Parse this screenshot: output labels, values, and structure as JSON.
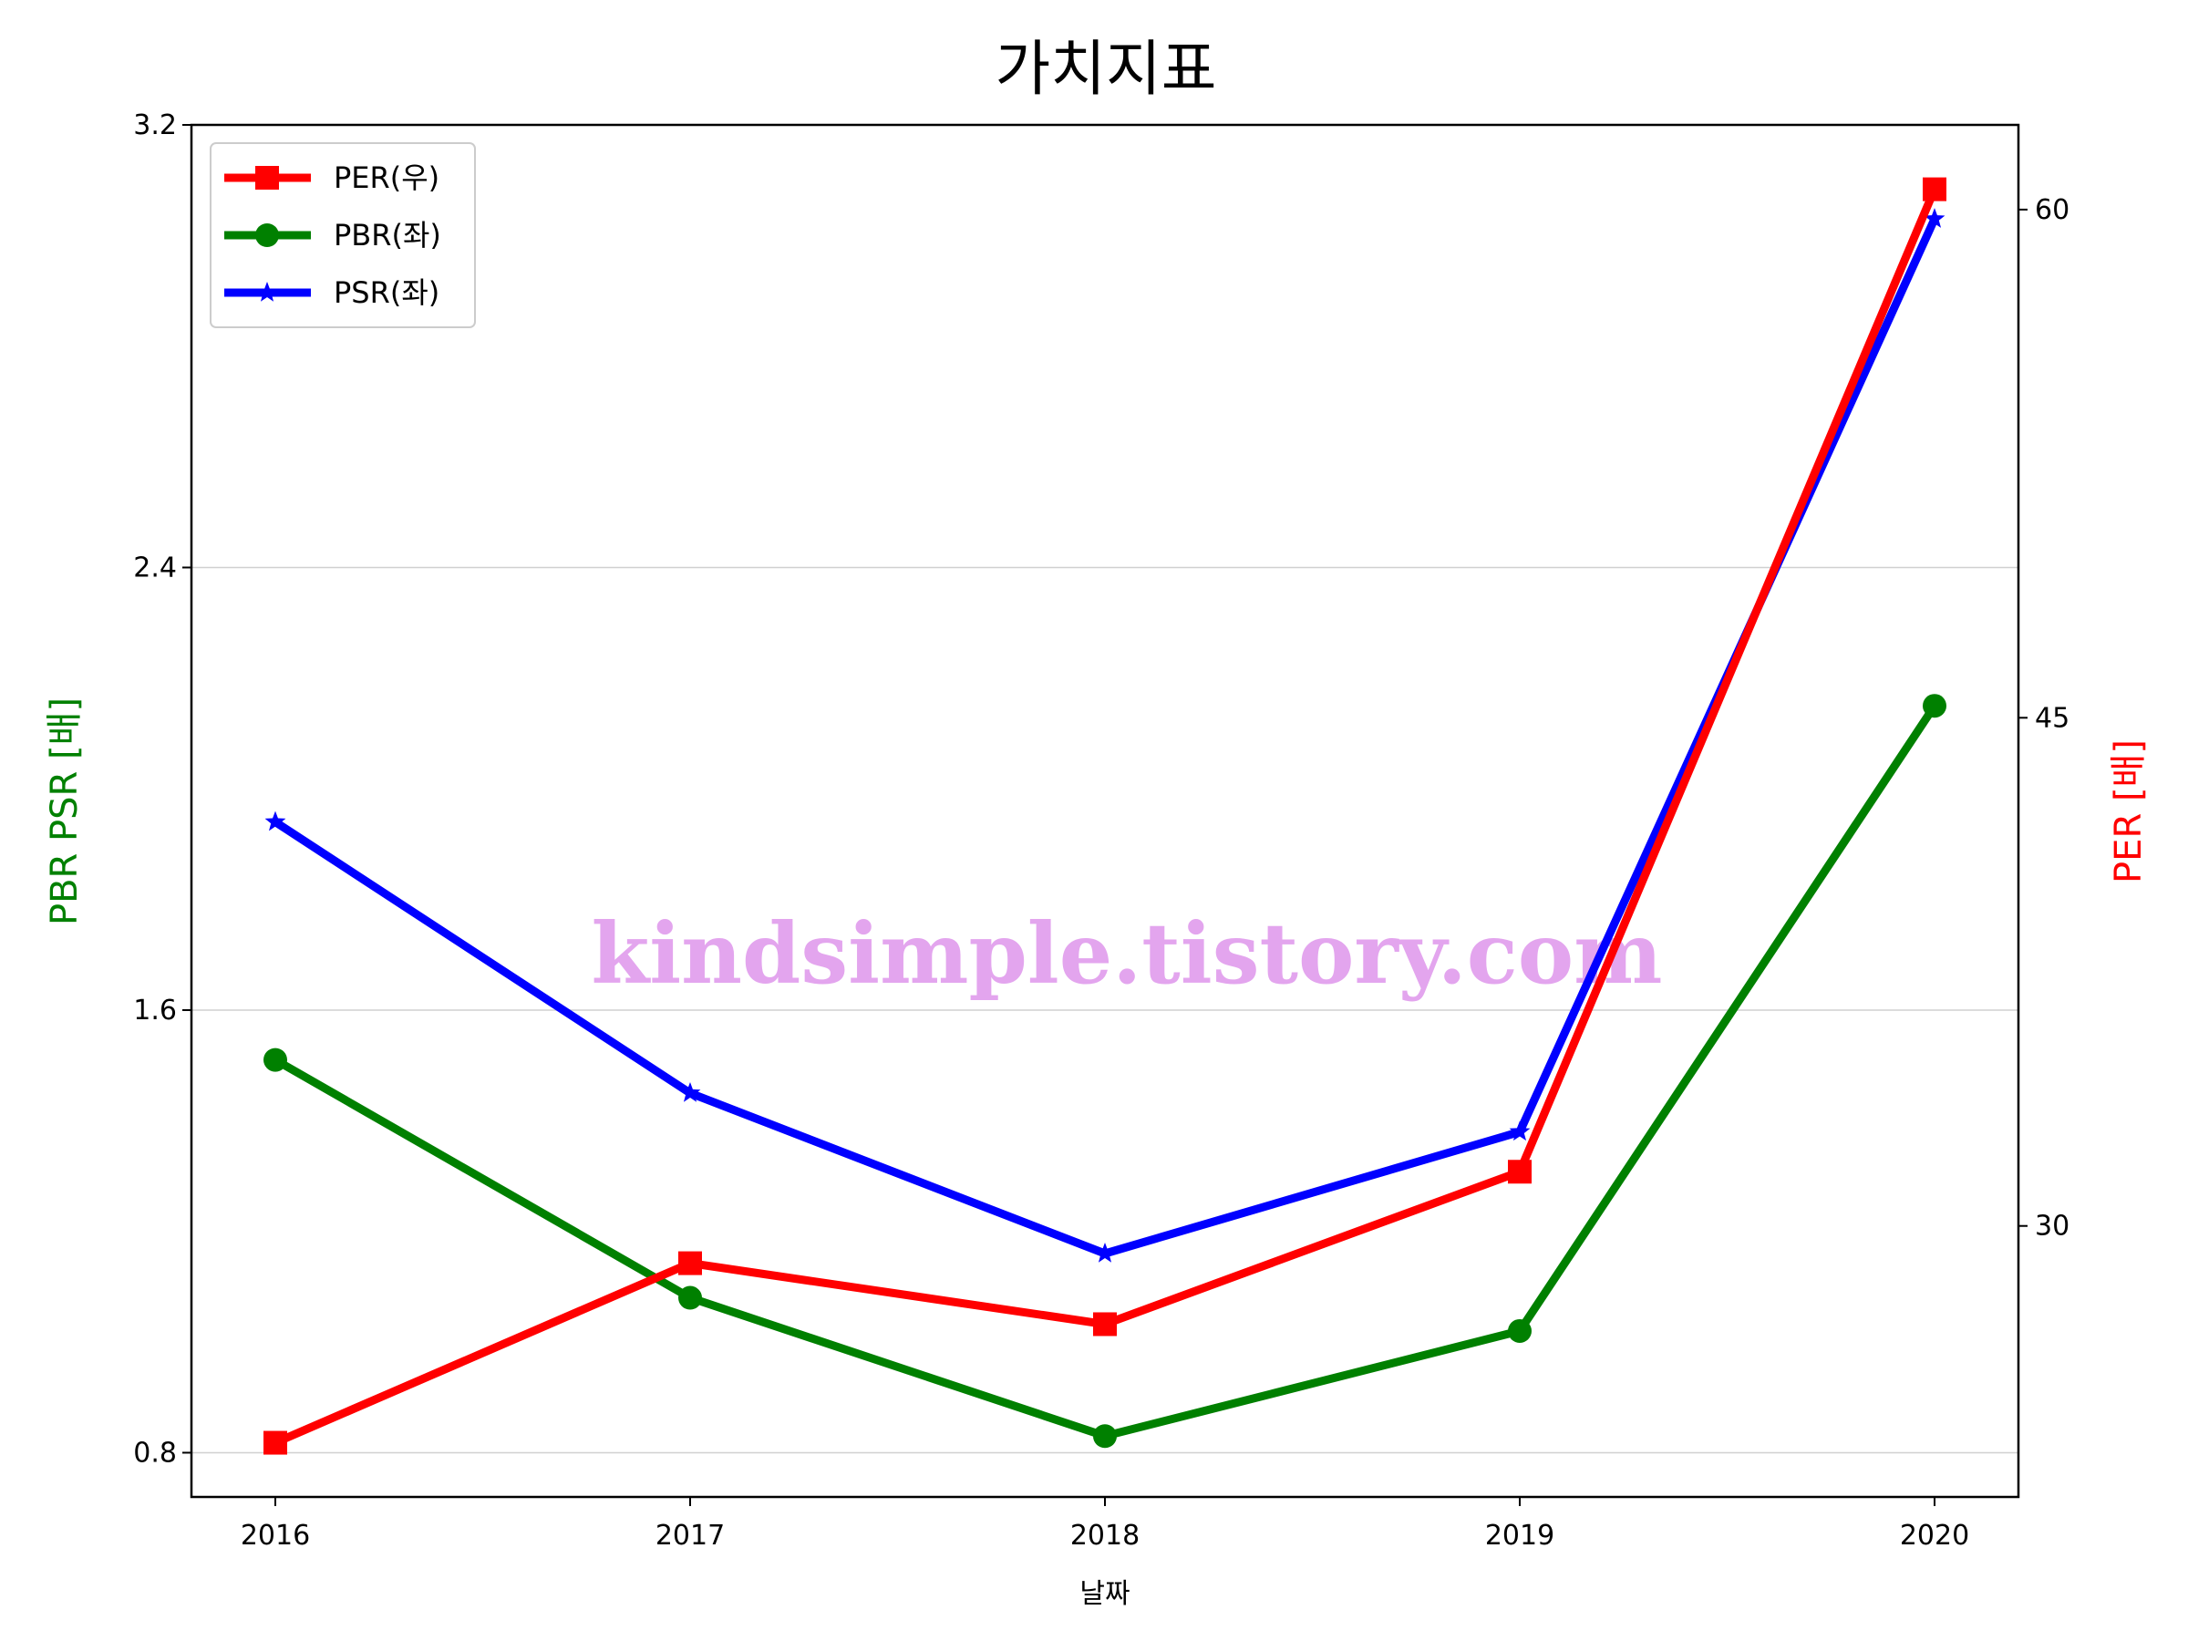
{
  "chart_data": {
    "type": "line",
    "title": "가치지표",
    "xlabel": "날짜",
    "ylabel_left": "PBR PSR [배]",
    "ylabel_right": "PER [배]",
    "categories": [
      "2016",
      "2017",
      "2018",
      "2019",
      "2020"
    ],
    "left_axis": {
      "ylim": [
        0.72,
        3.2
      ],
      "ticks": [
        0.8,
        1.6,
        2.4,
        3.2
      ],
      "tick_labels": [
        "0.8",
        "1.6",
        "2.4",
        "3.2"
      ]
    },
    "right_axis": {
      "ylim": [
        22,
        62.5
      ],
      "ticks": [
        30,
        45,
        60
      ],
      "tick_labels": [
        "30",
        "45",
        "60"
      ]
    },
    "grid": "horizontal (left axis)",
    "legend_position": "top-left",
    "watermark": "kindsimple.tistory.com",
    "series": [
      {
        "name": "PER(우)",
        "axis": "right",
        "marker": "square",
        "color": "#ff0000",
        "values": [
          23.6,
          28.9,
          27.1,
          31.6,
          60.6
        ]
      },
      {
        "name": "PBR(좌)",
        "axis": "left",
        "marker": "circle",
        "color": "#008000",
        "values": [
          1.51,
          1.08,
          0.83,
          1.02,
          2.15
        ]
      },
      {
        "name": "PSR(좌)",
        "axis": "left",
        "marker": "star",
        "color": "#0000ff",
        "values": [
          1.94,
          1.45,
          1.16,
          1.38,
          3.03
        ]
      }
    ]
  }
}
